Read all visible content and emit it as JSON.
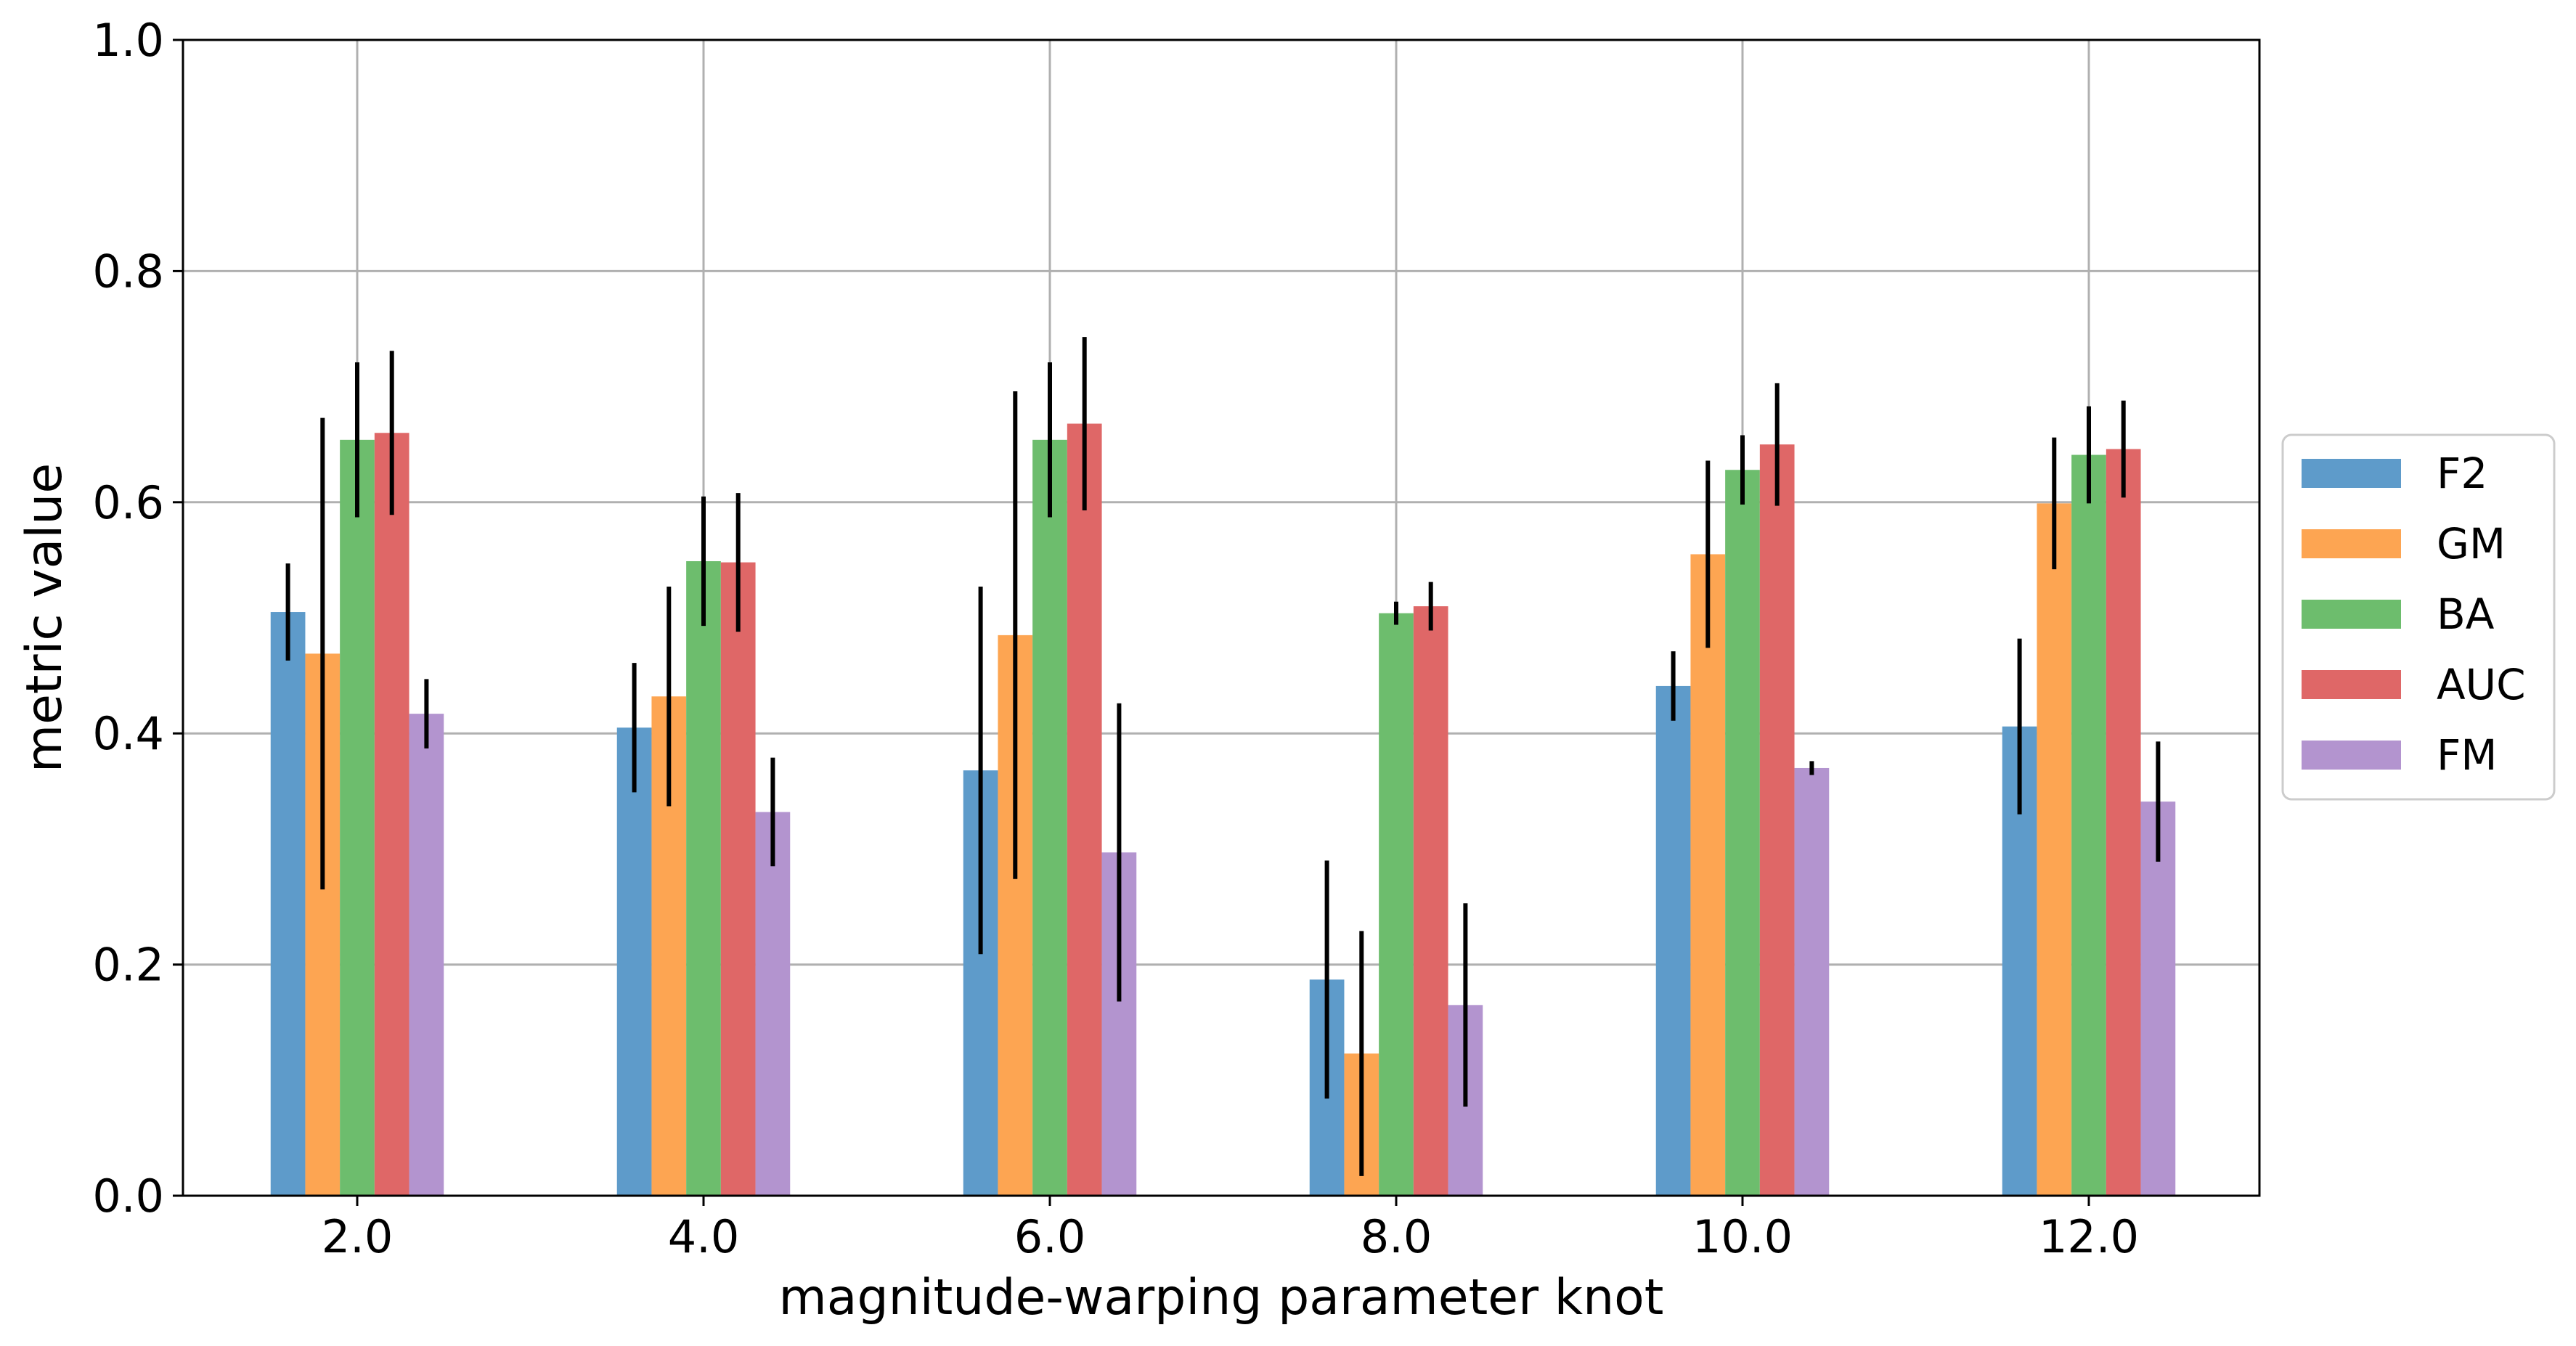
{
  "chart_data": {
    "type": "bar",
    "title": "",
    "xlabel": "magnitude-warping parameter knot",
    "ylabel": "metric value",
    "categories": [
      "2.0",
      "4.0",
      "6.0",
      "8.0",
      "10.0",
      "12.0"
    ],
    "ylim": [
      0.0,
      1.0
    ],
    "yticks": [
      "0.0",
      "0.2",
      "0.4",
      "0.6",
      "0.8",
      "1.0"
    ],
    "grid": true,
    "legend_position": "right",
    "series": [
      {
        "name": "F2",
        "color": "#5e9bca",
        "values": [
          0.505,
          0.405,
          0.368,
          0.187,
          0.441,
          0.406
        ],
        "errors": [
          0.042,
          0.056,
          0.159,
          0.103,
          0.03,
          0.076
        ]
      },
      {
        "name": "GM",
        "color": "#fda552",
        "values": [
          0.469,
          0.432,
          0.485,
          0.123,
          0.555,
          0.599
        ],
        "errors": [
          0.204,
          0.095,
          0.211,
          0.106,
          0.081,
          0.057
        ]
      },
      {
        "name": "BA",
        "color": "#6dbd6d",
        "values": [
          0.654,
          0.549,
          0.654,
          0.504,
          0.628,
          0.641
        ],
        "errors": [
          0.067,
          0.056,
          0.067,
          0.01,
          0.03,
          0.042
        ]
      },
      {
        "name": "AUC",
        "color": "#df6767",
        "values": [
          0.66,
          0.548,
          0.668,
          0.51,
          0.65,
          0.646
        ],
        "errors": [
          0.071,
          0.06,
          0.075,
          0.021,
          0.053,
          0.042
        ]
      },
      {
        "name": "FM",
        "color": "#b394cf",
        "values": [
          0.417,
          0.332,
          0.297,
          0.165,
          0.37,
          0.341
        ],
        "errors": [
          0.03,
          0.047,
          0.129,
          0.088,
          0.006,
          0.052
        ]
      }
    ]
  }
}
